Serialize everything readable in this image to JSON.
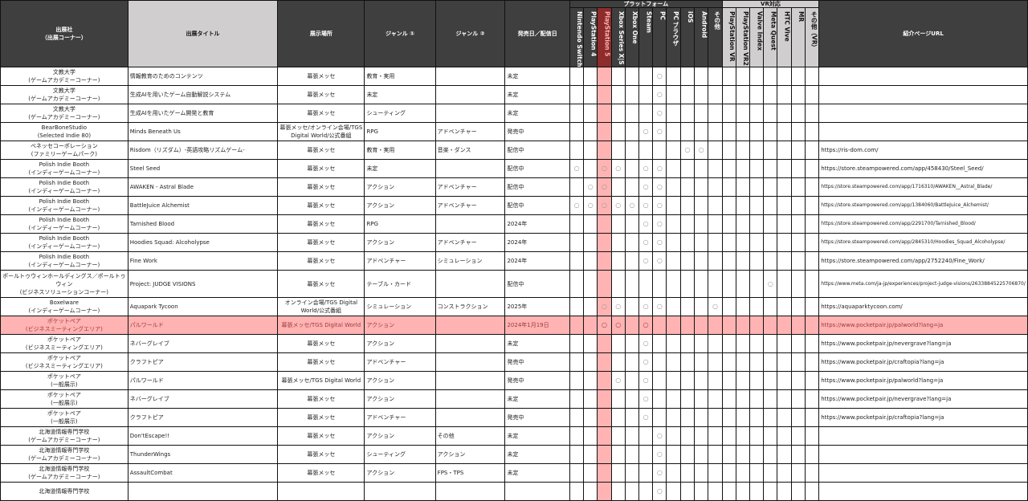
{
  "headers": {
    "exhibitor_line1": "出展社",
    "exhibitor_line2": "（出展コーナー）",
    "title": "出展タイトル",
    "venue": "展示場所",
    "genre1": "ジャンル ①",
    "genre2": "ジャンル ②",
    "release": "発売日／配信日",
    "platform_group": "プラットフォーム",
    "vr_group": "VR対応",
    "url": "紹介ページURL",
    "platforms": [
      "Nintendo Switch",
      "PlayStation 4",
      "PlayStation 5",
      "Xbox Series X|S",
      "Xbox One",
      "Steam",
      "PC",
      "PC ブラウザ",
      "iOS",
      "Android",
      "その他",
      "PlayStation VR",
      "PlayStation VR2",
      "Valve Index",
      "Meta Quest",
      "HTC Vive",
      "MR",
      "その他（VR）"
    ]
  },
  "mark_symbol": "○",
  "colors": {
    "header_dark": "#3f3f3f",
    "header_light": "#d0cece",
    "highlight": "#ffb3b3",
    "ps5_header": "#8e2b2b"
  },
  "rows": [
    {
      "exhibitor": "文教大学",
      "corner": "(ゲームアカデミーコーナー)",
      "title": "情報教育のためのコンテンツ",
      "venue": "幕張メッセ",
      "genre1": "教育・実用",
      "genre2": "",
      "release": "未定",
      "marks": [
        6
      ],
      "url": ""
    },
    {
      "exhibitor": "文教大学",
      "corner": "(ゲームアカデミーコーナー)",
      "title": "生成AIを用いたゲーム自動解説システム",
      "venue": "幕張メッセ",
      "genre1": "未定",
      "genre2": "",
      "release": "未定",
      "marks": [
        6
      ],
      "url": ""
    },
    {
      "exhibitor": "文教大学",
      "corner": "(ゲームアカデミーコーナー)",
      "title": "生成AIを用いたゲーム開発と教育",
      "venue": "幕張メッセ",
      "genre1": "シューティング",
      "genre2": "",
      "release": "未定",
      "marks": [
        6
      ],
      "url": ""
    },
    {
      "exhibitor": "BearBoneStudio",
      "corner": "(Selected Indie 80)",
      "title": "Minds Beneath Us",
      "venue": "幕張メッセ/オンライン会場/TGS Digital World/公式番組",
      "genre1": "RPG",
      "genre2": "アドベンチャー",
      "release": "発売中",
      "marks": [
        5,
        6
      ],
      "url": ""
    },
    {
      "exhibitor": "ベネッセコーポレーション",
      "corner": "(ファミリーゲームパーク)",
      "title": "Risdom（リズダム）-英語攻略リズムゲーム-",
      "venue": "幕張メッセ",
      "genre1": "教育・実用",
      "genre2": "音楽・ダンス",
      "release": "配信中",
      "marks": [
        8,
        9
      ],
      "url": "https://ris-dom.com/"
    },
    {
      "exhibitor": "Polish Indie Booth",
      "corner": "(インディーゲームコーナー)",
      "title": "Steel Seed",
      "venue": "幕張メッセ",
      "genre1": "未定",
      "genre2": "",
      "release": "配信中",
      "marks": [
        0,
        2,
        3,
        5,
        6
      ],
      "url": "https://store.steampowered.com/app/458430/Steel_Seed/"
    },
    {
      "exhibitor": "Polish Indie Booth",
      "corner": "(インディーゲームコーナー)",
      "title": "AWAKEN - Astral Blade",
      "venue": "幕張メッセ",
      "genre1": "アクション",
      "genre2": "アドベンチャー",
      "release": "配信中",
      "marks": [
        1,
        2,
        5,
        6
      ],
      "url": "https://store.steampowered.com/app/1716310/AWAKEN__Astral_Blade/"
    },
    {
      "exhibitor": "Polish Indie Booth",
      "corner": "(インディーゲームコーナー)",
      "title": "BattleJuice Alchemist",
      "venue": "幕張メッセ",
      "genre1": "アクション",
      "genre2": "アドベンチャー",
      "release": "配信中",
      "marks": [
        0,
        1,
        2,
        3,
        4,
        5,
        6
      ],
      "url": "https://store.steampowered.com/app/1384060/BattleJuice_Alchemist/"
    },
    {
      "exhibitor": "Polish Indie Booth",
      "corner": "(インディーゲームコーナー)",
      "title": "Tarnished Blood",
      "venue": "幕張メッセ",
      "genre1": "RPG",
      "genre2": "",
      "release": "2024年",
      "marks": [
        5,
        6
      ],
      "url": "https://store.steampowered.com/app/2291700/Tarnished_Blood/"
    },
    {
      "exhibitor": "Polish Indie Booth",
      "corner": "(インディーゲームコーナー)",
      "title": "Hoodies Squad: Alcoholypse",
      "venue": "幕張メッセ",
      "genre1": "アクション",
      "genre2": "アドベンチャー",
      "release": "2024年",
      "marks": [
        5,
        6
      ],
      "url": "https://store.steampowered.com/app/2845310/Hoodies_Squad_Alcoholypse/"
    },
    {
      "exhibitor": "Polish Indie Booth",
      "corner": "(インディーゲームコーナー)",
      "title": "Fine Work",
      "venue": "幕張メッセ",
      "genre1": "アドベンチャー",
      "genre2": "シミュレーション",
      "release": "2024年",
      "marks": [
        5,
        6
      ],
      "url": "https://store.steampowered.com/app/2752240/Fine_Work/"
    },
    {
      "exhibitor": "ポールトゥウィンホールディングス／ポールトゥウィン",
      "corner": "(ビジネスソリューションコーナー)",
      "title": "Project: JUDGE VISIONS",
      "venue": "幕張メッセ",
      "genre1": "テーブル・カード",
      "genre2": "",
      "release": "配信中",
      "marks": [
        14
      ],
      "url": "https://www.meta.com/ja-jp/experiences/project-judge-visions/26338845225706870/"
    },
    {
      "exhibitor": "Boxelware",
      "corner": "(インディーゲームコーナー)",
      "title": "Aquapark Tycoon",
      "venue": "オンライン会場/TGS Digital World/公式番組",
      "genre1": "シミュレーション",
      "genre2": "コンストラクション",
      "release": "2025年",
      "marks": [
        2,
        3,
        5,
        6,
        10
      ],
      "url": "https://aquaparktycoon.com/"
    },
    {
      "exhibitor": "ポケットペア",
      "corner": "(ビジネスミーティングエリア)",
      "title": "パルワールド",
      "venue": "幕張メッセ/TGS Digital World",
      "genre1": "アクション",
      "genre2": "",
      "release": "2024年1月19日",
      "marks": [
        2,
        3,
        5
      ],
      "url": "https://www.pocketpair.jp/palworld?lang=ja",
      "highlight": true
    },
    {
      "exhibitor": "ポケットペア",
      "corner": "(ビジネスミーティングエリア)",
      "title": "ネバーグレイブ",
      "venue": "幕張メッセ",
      "genre1": "アクション",
      "genre2": "",
      "release": "未定",
      "marks": [
        5
      ],
      "url": "https://www.pocketpair.jp/nevergrave?lang=ja"
    },
    {
      "exhibitor": "ポケットペア",
      "corner": "(ビジネスミーティングエリア)",
      "title": "クラフトピア",
      "venue": "幕張メッセ",
      "genre1": "アドベンチャー",
      "genre2": "",
      "release": "発売中",
      "marks": [
        5
      ],
      "url": "https://www.pocketpair.jp/craftopia?lang=ja"
    },
    {
      "exhibitor": "ポケットペア",
      "corner": "(一般展示)",
      "title": "パルワールド",
      "venue": "幕張メッセ/TGS Digital World",
      "genre1": "アクション",
      "genre2": "",
      "release": "発売中",
      "marks": [
        3,
        5
      ],
      "url": "https://www.pocketpair.jp/palworld?lang=ja"
    },
    {
      "exhibitor": "ポケットペア",
      "corner": "(一般展示)",
      "title": "ネバーグレイブ",
      "venue": "幕張メッセ",
      "genre1": "アクション",
      "genre2": "",
      "release": "未定",
      "marks": [
        5
      ],
      "url": "https://www.pocketpair.jp/nevergrave?lang=ja"
    },
    {
      "exhibitor": "ポケットペア",
      "corner": "(一般展示)",
      "title": "クラフトピア",
      "venue": "幕張メッセ",
      "genre1": "アドベンチャー",
      "genre2": "",
      "release": "発売中",
      "marks": [
        5
      ],
      "url": "https://www.pocketpair.jp/craftopia?lang=ja"
    },
    {
      "exhibitor": "北海道情報専門学校",
      "corner": "(ゲームアカデミーコーナー)",
      "title": "Don'tEscape!!",
      "venue": "幕張メッセ",
      "genre1": "アクション",
      "genre2": "その他",
      "release": "未定",
      "marks": [
        6
      ],
      "url": ""
    },
    {
      "exhibitor": "北海道情報専門学校",
      "corner": "(ゲームアカデミーコーナー)",
      "title": "ThunderWings",
      "venue": "幕張メッセ",
      "genre1": "シューティング",
      "genre2": "アクション",
      "release": "未定",
      "marks": [
        6
      ],
      "url": ""
    },
    {
      "exhibitor": "北海道情報専門学校",
      "corner": "(ゲームアカデミーコーナー)",
      "title": "AssaultCombat",
      "venue": "幕張メッセ",
      "genre1": "アクション",
      "genre2": "FPS・TPS",
      "release": "未定",
      "marks": [
        6
      ],
      "url": ""
    },
    {
      "exhibitor": "北海道情報専門学校",
      "corner": "",
      "title": "",
      "venue": "",
      "genre1": "",
      "genre2": "",
      "release": "",
      "marks": [
        6
      ],
      "url": ""
    }
  ]
}
